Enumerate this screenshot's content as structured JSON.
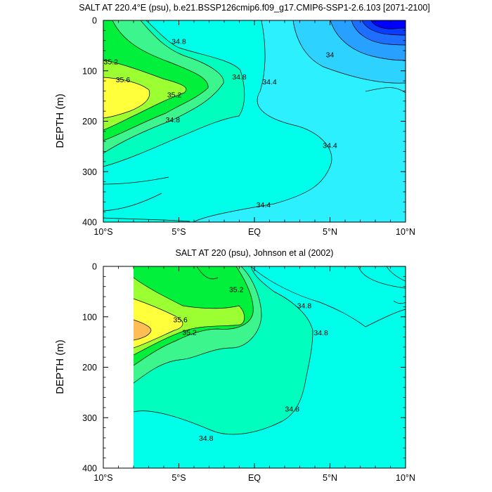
{
  "panels": [
    {
      "title": "SALT AT 220.4°E (psu), b.e21.BSSP126cmip6.f09_g17.CMIP6-SSP1-2.6.103 [2071-2100]",
      "ylabel": "DEPTH (m)"
    },
    {
      "title": "SALT AT 220 (psu), Johnson et al (2002)",
      "ylabel": "DEPTH (m)"
    }
  ],
  "chart_data": [
    {
      "type": "contour",
      "title": "SALT AT 220.4°E (psu), b.e21.BSSP126cmip6.f09_g17.CMIP6-SSP1-2.6.103 [2071-2100]",
      "ylabel": "DEPTH (m)",
      "xlim": [
        -10,
        10
      ],
      "ylim": [
        400,
        0
      ],
      "x_ticks": [
        -10,
        -5,
        0,
        5,
        10
      ],
      "x_tick_labels": [
        "10°S",
        "5°S",
        "EQ",
        "5°N",
        "10°N"
      ],
      "y_ticks": [
        0,
        100,
        200,
        300,
        400
      ],
      "y_tick_labels": [
        "0",
        "100",
        "200",
        "300",
        "400"
      ],
      "contour_interval": 0.2,
      "labeled_contours": [
        {
          "text": "34.8",
          "x": -5.0,
          "y": 42
        },
        {
          "text": "35.2",
          "x": -9.5,
          "y": 82
        },
        {
          "text": "34.8",
          "x": -1.0,
          "y": 112
        },
        {
          "text": "35.6",
          "x": -8.7,
          "y": 118
        },
        {
          "text": "34.4",
          "x": 1.0,
          "y": 122
        },
        {
          "text": "34",
          "x": 5.0,
          "y": 68
        },
        {
          "text": "35.2",
          "x": -5.3,
          "y": 148
        },
        {
          "text": "34.8",
          "x": -5.4,
          "y": 197
        },
        {
          "text": "34.4",
          "x": 5.0,
          "y": 248
        },
        {
          "text": "34.4",
          "x": 0.6,
          "y": 366
        }
      ],
      "fields": {
        "max_value": 35.8,
        "max_location": [
          -10,
          140
        ],
        "min_value": 33.4,
        "min_location": [
          10,
          0
        ]
      }
    },
    {
      "type": "contour",
      "title": "SALT AT 220 (psu), Johnson et al (2002)",
      "ylabel": "DEPTH (m)",
      "xlim": [
        -10,
        10
      ],
      "ylim": [
        400,
        0
      ],
      "data_xrange": [
        -8,
        10
      ],
      "x_ticks": [
        -10,
        -5,
        0,
        5,
        10
      ],
      "x_tick_labels": [
        "10°S",
        "5°S",
        "EQ",
        "5°N",
        "10°N"
      ],
      "y_ticks": [
        0,
        100,
        200,
        300,
        400
      ],
      "y_tick_labels": [
        "0",
        "100",
        "200",
        "300",
        "400"
      ],
      "contour_interval": 0.2,
      "labeled_contours": [
        {
          "text": "35.2",
          "x": -1.2,
          "y": 46
        },
        {
          "text": "34.8",
          "x": 3.3,
          "y": 78
        },
        {
          "text": "35.6",
          "x": -4.9,
          "y": 106
        },
        {
          "text": "34.8",
          "x": 4.4,
          "y": 132
        },
        {
          "text": "35.2",
          "x": -4.3,
          "y": 131
        },
        {
          "text": "34.8",
          "x": 2.5,
          "y": 283
        },
        {
          "text": "34.8",
          "x": -3.2,
          "y": 341
        }
      ],
      "fields": {
        "max_value": 35.8,
        "max_location": [
          -8,
          125
        ],
        "min_value": 34.4,
        "min_location": [
          10,
          10
        ]
      }
    }
  ],
  "colors": {
    "c33_4": "#0000ff",
    "c33_6": "#0a3cff",
    "c33_8": "#1e6eff",
    "c34_0": "#28a0ff",
    "c34_2": "#2dd2ff",
    "c34_4": "#2df0ff",
    "c34_6": "#00ffeb",
    "c34_8": "#00ffbe",
    "c35_0": "#3cf58c",
    "c35_2": "#00f03c",
    "c35_4": "#9bff32",
    "c35_6": "#ffff3c",
    "c35_8": "#ffbe55"
  }
}
